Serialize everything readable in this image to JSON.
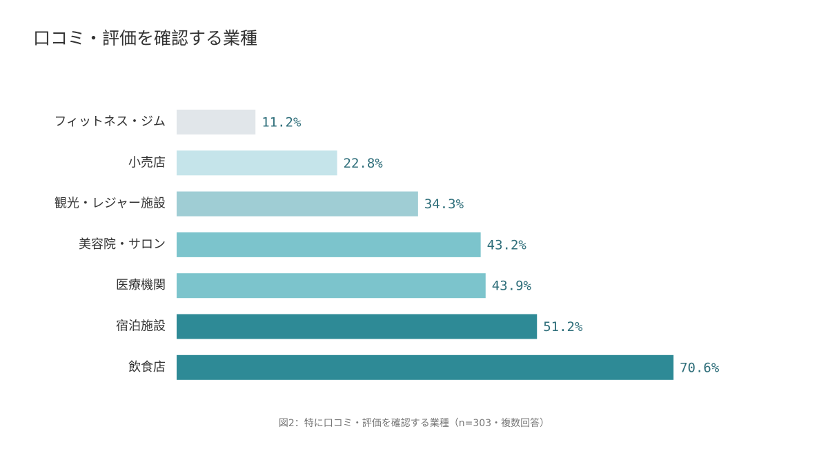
{
  "chart_data": {
    "type": "bar",
    "orientation": "horizontal",
    "title": "口コミ・評価を確認する業種",
    "caption": "図2：特に口コミ・評価を確認する業種（n=303・複数回答）",
    "categories": [
      "フィットネス・ジム",
      "小売店",
      "観光・レジャー施設",
      "美容院・サロン",
      "医療機関",
      "宿泊施設",
      "飲食店"
    ],
    "values": [
      11.2,
      22.8,
      34.3,
      43.2,
      43.9,
      51.2,
      70.6
    ],
    "value_labels": [
      "11.2%",
      "22.8%",
      "34.3%",
      "43.2%",
      "43.9%",
      "51.2%",
      "70.6%"
    ],
    "colors": [
      "#e1e6ea",
      "#c5e4ea",
      "#9fcdd4",
      "#7cc4cc",
      "#7cc4cc",
      "#2e8a96",
      "#2e8a96"
    ]
  }
}
